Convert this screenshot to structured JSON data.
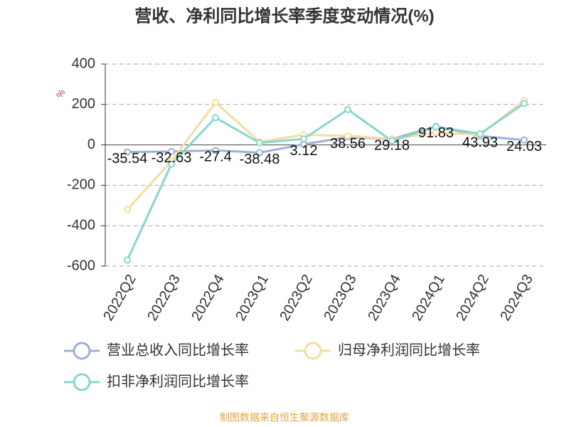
{
  "chart_data": {
    "type": "line",
    "title": "营收、净利同比增长率季度变动情况(%)",
    "y_axis_label": "%",
    "categories": [
      "2022Q2",
      "2022Q3",
      "2022Q4",
      "2023Q1",
      "2023Q2",
      "2023Q3",
      "2023Q4",
      "2024Q1",
      "2024Q2",
      "2024Q3"
    ],
    "series": [
      {
        "name": "营业总收入同比增长率",
        "color": "#9db0d6",
        "values": [
          -35.54,
          -32.63,
          -27.4,
          -38.48,
          3.12,
          38.56,
          29.18,
          91.83,
          43.93,
          24.03
        ]
      },
      {
        "name": "归母净利润同比增长率",
        "color": "#f6dca0",
        "values": [
          -320,
          -80,
          210,
          15,
          50,
          45,
          30,
          60,
          50,
          220
        ]
      },
      {
        "name": "扣非净利润同比增长率",
        "color": "#86d6d2",
        "values": [
          -570,
          -95,
          135,
          10,
          30,
          175,
          20,
          90,
          55,
          205
        ]
      }
    ],
    "ylim": [
      -600,
      400
    ],
    "yticks": [
      -600,
      -400,
      -200,
      0,
      200,
      400
    ],
    "grid": true,
    "source": "制图数据来自恒生聚源数据库"
  }
}
